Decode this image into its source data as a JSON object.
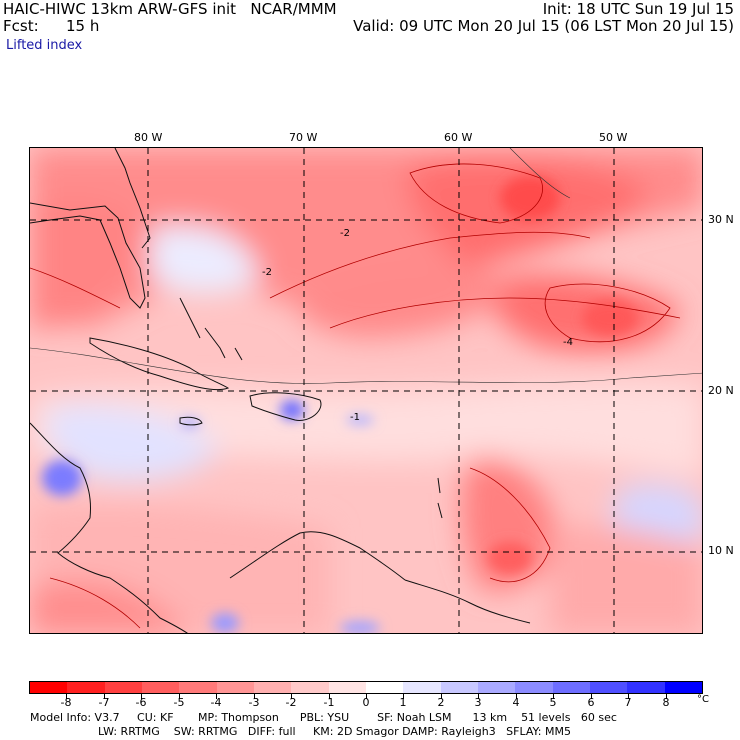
{
  "header": {
    "title_left": "HAIC-HIWC 13km ARW-GFS init   NCAR/MMM",
    "init": "Init: 18 UTC Sun 19 Jul 15",
    "fcst_label": "Fcst:",
    "fcst_value": "15 h",
    "valid": "Valid: 09 UTC Mon 20 Jul 15 (06 LST Mon 20 Jul 15)",
    "field": "Lifted index"
  },
  "map": {
    "longitudes": [
      {
        "label": "80 W",
        "value": -80
      },
      {
        "label": "70 W",
        "value": -70
      },
      {
        "label": "60 W",
        "value": -60
      },
      {
        "label": "50 W",
        "value": -50
      }
    ],
    "latitudes": [
      {
        "label": "30 N",
        "value": 30
      },
      {
        "label": "20 N",
        "value": 20
      },
      {
        "label": "10 N",
        "value": 10
      }
    ],
    "contour_labels": [
      "-2",
      "-2",
      "-4",
      "-1"
    ]
  },
  "colorbar": {
    "labels": [
      "-8",
      "-7",
      "-6",
      "-5",
      "-4",
      "-3",
      "-2",
      "-1",
      "0",
      "1",
      "2",
      "3",
      "4",
      "5",
      "6",
      "7",
      "8"
    ],
    "unit": "°C",
    "colors": [
      "#ff0000",
      "#ff2020",
      "#ff4040",
      "#ff5e5e",
      "#ff7a7a",
      "#ff9595",
      "#ffb0b0",
      "#ffcaca",
      "#ffe4e4",
      "#ffffff",
      "#e6e6ff",
      "#c8c8ff",
      "#aaaaff",
      "#8c8cff",
      "#6e6eff",
      "#5050ff",
      "#3232ff",
      "#0000ff"
    ]
  },
  "footer": {
    "line1": "Model Info: V3.7     CU: KF       MP: Thompson      PBL: YSU        SF: Noah LSM      13 km    51 levels   60 sec",
    "line2": "LW: RRTMG    SW: RRTMG   DIFF: full     KM: 2D Smagor DAMP: Rayleigh3   SFLAY: MM5"
  },
  "colors": {
    "accent_blue": "#1a1aa6",
    "field_red": "#ff7a7a",
    "field_blue": "#6e6eff"
  }
}
